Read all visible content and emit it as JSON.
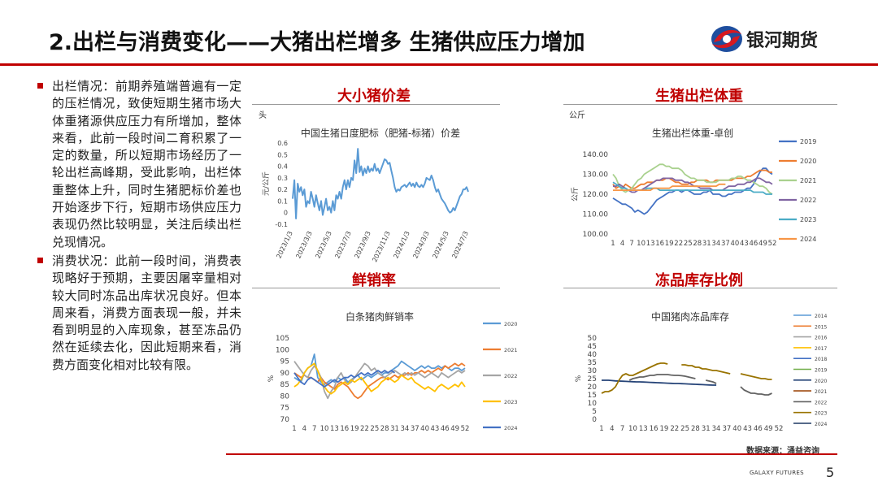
{
  "header": {
    "title": "2.出栏与消费变化——大猪出栏增多 生猪供应压力增加",
    "logo_text": "银河期货"
  },
  "bullets": [
    {
      "text": "出栏情况：前期养殖端普遍有一定的压栏情况，致使短期生猪市场大体重猪源供应压力有所增加，整体来看，此前一段时间二育积累了一定的数量，所以短期市场经历了一轮出栏高峰期，受此影响，出栏体重整体上升，同时生猪肥标价差也开始逐步下行，短期市场供应压力表现仍然比较明显，关注后续出栏兑现情况。"
    },
    {
      "text": "消费状况：此前一段时间，消费表现略好于预期，主要因屠宰量相对较大同时冻品出库状况良好。但本周来看，消费方面表现一般，并未看到明显的入库现象，甚至冻品仍然在延续去化，因此短期来看，消费方面变化相对比较有限。"
    }
  ],
  "sections": {
    "s1": "大小猪价差",
    "s2": "生猪出栏体重",
    "s3": "鲜销率",
    "s4": "冻品库存比例"
  },
  "units": {
    "s1": "头",
    "s2": "公斤"
  },
  "chart_data": [
    {
      "type": "line",
      "title": "中国生猪日度肥标（肥猪-标猪）价差",
      "ylabel": "元/公斤",
      "ylim": [
        -0.1,
        0.6
      ],
      "yticks": [
        "0.6",
        "0.5",
        "0.4",
        "0.3",
        "0.2",
        "0.1",
        "0",
        "-0.1"
      ],
      "x_ticklabels": [
        "2023/1/3",
        "2023/3/3",
        "2023/5/3",
        "2023/7/3",
        "2023/9/3",
        "2023/11/3",
        "2024/1/3",
        "2024/3/3",
        "2024/5/3",
        "2024/7/3"
      ],
      "series": [
        {
          "color": "#5b9bd5",
          "values": [
            0.12,
            0.28,
            -0.05,
            0.25,
            0.18,
            0.22,
            0.15,
            0.2,
            0.05,
            0.1,
            0.08,
            0.18,
            0.12,
            0.05,
            0.15,
            0.08,
            0.02,
            0.1,
            -0.02,
            0.05,
            0.12,
            0.02,
            0.05,
            0.0,
            0.1,
            0.02,
            0.15,
            0.12,
            0.18,
            0.12,
            0.22,
            0.28,
            0.2,
            0.28,
            0.22,
            0.3,
            0.28,
            0.45,
            0.34,
            0.55,
            0.35,
            0.4,
            0.32,
            0.38,
            0.34,
            0.4,
            0.35,
            0.38,
            0.36,
            0.42,
            0.36,
            0.38,
            0.34,
            0.38,
            0.42,
            0.46,
            0.45,
            0.42,
            0.43,
            0.36,
            0.3,
            0.22,
            0.18,
            0.2,
            0.19,
            0.22,
            0.23,
            0.24,
            0.22,
            0.24,
            0.26,
            0.23,
            0.25,
            0.22,
            0.26,
            0.23,
            0.22,
            0.24,
            0.22,
            0.25,
            0.3,
            0.29,
            0.28,
            0.32,
            0.28,
            0.22,
            0.18,
            0.2,
            0.16,
            0.12,
            0.1,
            0.08,
            0.05,
            0.02,
            0.0,
            0.01,
            0.04,
            0.02,
            0.06,
            0.1,
            0.14,
            0.16,
            0.2,
            0.2,
            0.22,
            0.18
          ]
        }
      ]
    },
    {
      "type": "line",
      "title": "生猪出栏体重-卓创",
      "ylabel": "公斤",
      "ylim": [
        100,
        140
      ],
      "yticks": [
        "140.00",
        "130.00",
        "120.00",
        "110.00",
        "100.00"
      ],
      "x_ticklabels": [
        "1",
        "4",
        "7",
        "10",
        "13",
        "16",
        "19",
        "22",
        "25",
        "28",
        "31",
        "34",
        "37",
        "40",
        "43",
        "46",
        "49",
        "52"
      ],
      "series": [
        {
          "name": "2019",
          "color": "#4472c4",
          "values": [
            118,
            117,
            116,
            115,
            115,
            114,
            113,
            111,
            112,
            111,
            110,
            111,
            113,
            115,
            117,
            118,
            119,
            120,
            121,
            121,
            122,
            122,
            121,
            122,
            122,
            121,
            120,
            120,
            120,
            121,
            121,
            122,
            120,
            120,
            120,
            119,
            119,
            120,
            120,
            121,
            121,
            121,
            122,
            123,
            123,
            125,
            128,
            131,
            133,
            133,
            131,
            130
          ]
        },
        {
          "name": "2020",
          "color": "#ed7d31",
          "values": [
            125,
            123,
            124,
            123,
            125,
            124,
            123,
            123,
            124,
            125,
            125,
            126,
            126,
            126,
            127,
            127,
            127,
            128,
            128,
            127,
            126,
            126,
            125,
            125,
            125,
            126,
            126,
            127,
            127,
            127,
            127,
            126,
            126,
            127,
            127,
            127,
            127,
            127,
            127,
            128,
            128,
            128,
            128,
            129,
            129,
            130,
            131,
            132,
            132,
            132,
            131,
            131
          ]
        },
        {
          "name": "2021",
          "color": "#a9d18e",
          "values": [
            130,
            128,
            124,
            122,
            121,
            122,
            123,
            125,
            127,
            128,
            130,
            131,
            132,
            133,
            134,
            135,
            135,
            134,
            134,
            133,
            133,
            133,
            132,
            130,
            129,
            128,
            128,
            127,
            127,
            127,
            126,
            126,
            126,
            126,
            127,
            127,
            127,
            127,
            128,
            128,
            129,
            129,
            128,
            127,
            127,
            126,
            125,
            124,
            124,
            123,
            121,
            120
          ]
        },
        {
          "name": "2022",
          "color": "#8064a2",
          "values": [
            124,
            124,
            125,
            124,
            123,
            122,
            121,
            121,
            122,
            122,
            123,
            124,
            125,
            126,
            127,
            127,
            128,
            128,
            128,
            128,
            127,
            127,
            127,
            126,
            126,
            125,
            124,
            124,
            123,
            123,
            123,
            123,
            122,
            122,
            122,
            122,
            123,
            124,
            124,
            124,
            125,
            125,
            125,
            126,
            126,
            127,
            128,
            128,
            127,
            126,
            126,
            125
          ]
        },
        {
          "name": "2023",
          "color": "#4bacc6",
          "values": [
            126,
            125,
            124,
            123,
            123,
            122,
            122,
            122,
            122,
            122,
            122,
            123,
            123,
            123,
            123,
            122,
            122,
            122,
            122,
            122,
            122,
            122,
            122,
            122,
            122,
            122,
            122,
            122,
            122,
            122,
            122,
            122,
            122,
            122,
            122,
            122,
            122,
            122,
            122,
            122,
            122,
            122,
            122,
            122,
            122,
            121,
            121,
            121,
            121,
            120,
            120,
            120
          ]
        },
        {
          "name": "2024",
          "color": "#f79646",
          "values": [
            122,
            122,
            122,
            122,
            122,
            122,
            122,
            122,
            122,
            122,
            122,
            122,
            122,
            123,
            123,
            123,
            123,
            123,
            123,
            124,
            124,
            124,
            124,
            124,
            124,
            124,
            124,
            124,
            124,
            124,
            124,
            124,
            124,
            124,
            125,
            125,
            125
          ]
        }
      ]
    },
    {
      "type": "line",
      "title": "白条猪肉鲜销率",
      "ylabel": "%",
      "ylim": [
        70,
        105
      ],
      "yticks": [
        "105",
        "100",
        "95",
        "90",
        "85",
        "80",
        "75",
        "70"
      ],
      "x_ticklabels": [
        "1",
        "4",
        "7",
        "10",
        "13",
        "16",
        "19",
        "22",
        "25",
        "28",
        "31",
        "34",
        "37",
        "40",
        "43",
        "46",
        "49",
        "52"
      ],
      "series": [
        {
          "name": "2020",
          "color": "#5b9bd5",
          "values": [
            88,
            87,
            86,
            90,
            92,
            93,
            98,
            88,
            86,
            85,
            86,
            87,
            86,
            88,
            87,
            88,
            86,
            87,
            88,
            89,
            87,
            88,
            89,
            88,
            89,
            90,
            89,
            90,
            90,
            91,
            92,
            93,
            95,
            94,
            93,
            92,
            91,
            92,
            93,
            92,
            93,
            92,
            92,
            93,
            92,
            93,
            92,
            91,
            92,
            92,
            91,
            92
          ]
        },
        {
          "name": "2021",
          "color": "#ed7d31",
          "values": [
            90,
            89,
            88,
            89,
            88,
            88,
            87,
            86,
            88,
            86,
            85,
            84,
            83,
            85,
            86,
            85,
            84,
            82,
            80,
            79,
            80,
            82,
            84,
            85,
            86,
            87,
            88,
            88,
            87,
            88,
            89,
            88,
            89,
            89,
            90,
            89,
            90,
            90,
            91,
            90,
            91,
            90,
            91,
            92,
            91,
            93,
            92,
            93,
            94,
            93,
            94,
            93
          ]
        },
        {
          "name": "2022",
          "color": "#a5a5a5",
          "values": [
            95,
            93,
            91,
            89,
            88,
            91,
            93,
            91,
            88,
            82,
            79,
            82,
            84,
            88,
            90,
            87,
            85,
            86,
            88,
            90,
            92,
            94,
            93,
            91,
            92,
            90,
            89,
            88,
            89,
            90,
            91,
            90,
            89,
            90,
            89,
            90,
            89,
            90,
            89,
            88,
            89,
            90,
            89,
            88,
            90,
            89,
            88,
            89,
            90,
            91,
            90,
            91
          ]
        },
        {
          "name": "2023",
          "color": "#ffc000",
          "values": [
            84,
            85,
            87,
            90,
            92,
            93,
            94,
            91,
            87,
            84,
            82,
            81,
            82,
            84,
            85,
            86,
            85,
            87,
            86,
            87,
            88,
            86,
            84,
            82,
            83,
            84,
            86,
            87,
            88,
            87,
            86,
            87,
            89,
            88,
            87,
            88,
            86,
            85,
            84,
            83,
            84,
            83,
            82,
            84,
            85,
            84,
            83,
            84,
            85,
            84,
            86,
            84
          ]
        },
        {
          "name": "2024",
          "color": "#4472c4",
          "values": [
            90,
            88,
            86,
            85,
            87,
            88,
            87,
            86,
            85,
            84,
            85,
            86,
            87,
            86,
            87,
            88,
            88,
            89,
            88,
            89,
            90,
            89,
            90,
            89,
            90,
            91,
            90,
            91,
            90,
            91,
            90
          ]
        }
      ]
    },
    {
      "type": "line",
      "title": "中国猪肉冻品库存",
      "ylabel": "%",
      "ylim": [
        0,
        50
      ],
      "yticks": [
        "50",
        "45",
        "40",
        "35",
        "30",
        "25",
        "20",
        "15",
        "10",
        "5",
        "0"
      ],
      "x_ticklabels": [
        "1",
        "4",
        "7",
        "10",
        "13",
        "16",
        "19",
        "22",
        "25",
        "28",
        "31",
        "34",
        "37",
        "40",
        "43",
        "46",
        "49",
        "52"
      ],
      "series": [
        {
          "name": "2014",
          "color": "#5b9bd5",
          "values": []
        },
        {
          "name": "2015",
          "color": "#ed7d31",
          "values": []
        },
        {
          "name": "2016",
          "color": "#a5a5a5",
          "values": []
        },
        {
          "name": "2017",
          "color": "#ffc000",
          "values": []
        },
        {
          "name": "2018",
          "color": "#4472c4",
          "values": []
        },
        {
          "name": "2019",
          "color": "#70ad47",
          "values": []
        },
        {
          "name": "2020",
          "color": "#264478",
          "values": [
            24,
            24,
            24,
            23.8,
            23.6,
            23.5,
            23.4,
            23.3,
            23.2,
            23.1,
            23,
            23,
            22.9,
            22.8,
            22.7,
            22.6,
            22.5,
            22.4,
            22.3,
            22.2,
            22.1,
            22,
            22,
            21.9,
            21.8,
            21.7,
            21.6,
            21.5,
            21.4,
            21.3,
            21.2,
            21.1,
            21,
            21
          ]
        },
        {
          "name": "2021",
          "color": "#9e480e",
          "values": []
        },
        {
          "name": "2022",
          "color": "#636363",
          "values": [
            null,
            null,
            null,
            null,
            null,
            null,
            null,
            null,
            24,
            25,
            25.5,
            26,
            26,
            26.5,
            27,
            27,
            27.5,
            27.5,
            27.5,
            27.5,
            27.2,
            27,
            27,
            26.8,
            26.5,
            26,
            25.5,
            25,
            null,
            null,
            24,
            23.5,
            23,
            22,
            null,
            null,
            null,
            null,
            null,
            null,
            20,
            18,
            17,
            16,
            16,
            15.5,
            15.5,
            15,
            15,
            16,
            null,
            null
          ]
        },
        {
          "name": "2023",
          "color": "#997300",
          "values": [
            16,
            17,
            17,
            18,
            20,
            24,
            27,
            28,
            27,
            27,
            28,
            29,
            30,
            31,
            32,
            33,
            34,
            34.5,
            34.5,
            34,
            null,
            null,
            null,
            33.5,
            33.5,
            33,
            33,
            32,
            32,
            31,
            31,
            30.5,
            30,
            30,
            29.5,
            29,
            28.5,
            28,
            null,
            null,
            28,
            27.5,
            27,
            26.5,
            26,
            25.5,
            25,
            25,
            24.5,
            24.5,
            null,
            null
          ]
        },
        {
          "name": "2024",
          "color": "#1f3864",
          "values": []
        }
      ]
    }
  ],
  "source_note": "数据来源：涌益咨询",
  "footer": {
    "company": "GALAXY FUTURES",
    "page": "5"
  }
}
